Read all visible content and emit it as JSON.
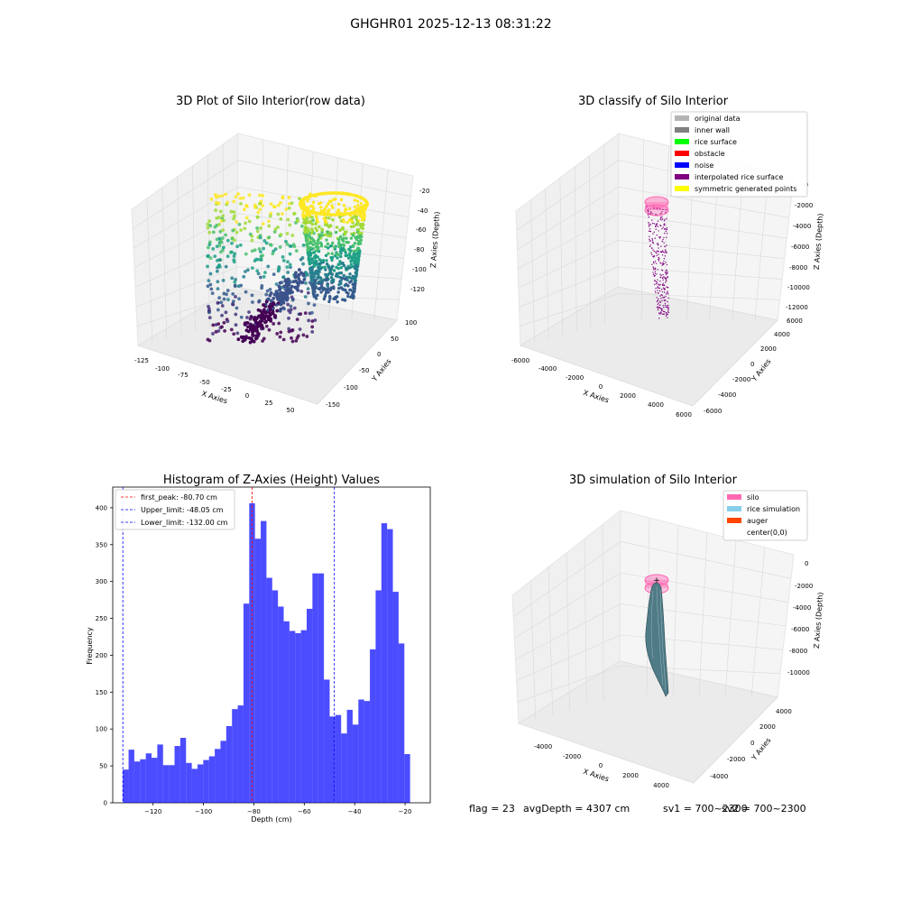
{
  "figure": {
    "suptitle": "GHGHR01 2025-12-13 08:31:22",
    "footer": {
      "flag": "flag = 23",
      "avg": "avgDepth = 4307 cm",
      "sv1": "sv1 = 700~2300",
      "sv2": "sv2 = 700~2300"
    }
  },
  "panels": {
    "raw": {
      "title": "3D Plot of Silo Interior(row data)",
      "xlabel": "X Axies",
      "ylabel": "Y Axies",
      "zlabel": "Z Axies (Depth)",
      "xticks": [
        "-125",
        "-100",
        "-75",
        "-50",
        "-25",
        "0",
        "25",
        "50"
      ],
      "yticks": [
        "100",
        "50",
        "0",
        "-50",
        "-100",
        "-150"
      ],
      "zticks": [
        "-20",
        "-40",
        "-60",
        "-80",
        "-100",
        "-120"
      ]
    },
    "classify": {
      "title": "3D classify of Silo Interior",
      "xlabel": "X Axies",
      "ylabel": "Y Axies",
      "zlabel": "Z Axies (Depth)",
      "xticks": [
        "-6000",
        "-4000",
        "-2000",
        "0",
        "2000",
        "4000",
        "6000"
      ],
      "yticks": [
        "6000",
        "4000",
        "2000",
        "0",
        "-2000",
        "-4000",
        "-6000"
      ],
      "zticks": [
        "0",
        "-2000",
        "-4000",
        "-6000",
        "-8000",
        "-10000",
        "-12000"
      ],
      "legend": [
        {
          "label": "original data",
          "color": "#b4b4b4"
        },
        {
          "label": "inner wall",
          "color": "#808080"
        },
        {
          "label": "rice surface",
          "color": "#00ff00"
        },
        {
          "label": "obstacle",
          "color": "#ff0000"
        },
        {
          "label": "noise",
          "color": "#0000ff"
        },
        {
          "label": "interpolated rice surface",
          "color": "#800080"
        },
        {
          "label": "symmetric generated points",
          "color": "#ffff00"
        }
      ]
    },
    "simulation": {
      "title": "3D simulation of Silo Interior",
      "xlabel": "X Axies",
      "ylabel": "Y Axies",
      "zlabel": "Z Axies (Depth)",
      "xticks": [
        "-4000",
        "-2000",
        "0",
        "2000",
        "4000"
      ],
      "yticks": [
        "4000",
        "2000",
        "0",
        "-2000",
        "-4000"
      ],
      "zticks": [
        "0",
        "-2000",
        "-4000",
        "-6000",
        "-8000",
        "-10000"
      ],
      "center_marker": "+",
      "legend": [
        {
          "label": "silo",
          "color": "#ff69b4"
        },
        {
          "label": "rice simulation",
          "color": "#87ceeb"
        },
        {
          "label": "auger",
          "color": "#ff4500"
        },
        {
          "label": "center(0,0)",
          "color": ""
        }
      ]
    }
  },
  "chart_data": {
    "type": "bar",
    "title": "Histogram of Z-Axies (Height) Values",
    "xlabel": "Depth (cm)",
    "ylabel": "Frequency",
    "xlim": [
      -136,
      -10
    ],
    "ylim": [
      0,
      428
    ],
    "xticks": [
      -120,
      -100,
      -80,
      -60,
      -40,
      -20
    ],
    "yticks": [
      0,
      50,
      100,
      150,
      200,
      250,
      300,
      350,
      400
    ],
    "bin_width": 2.28,
    "bin_start": -132.0,
    "values": [
      45,
      72,
      56,
      59,
      67,
      61,
      79,
      51,
      51,
      77,
      88,
      54,
      46,
      52,
      58,
      63,
      73,
      84,
      104,
      127,
      132,
      270,
      406,
      358,
      382,
      305,
      288,
      266,
      246,
      233,
      230,
      234,
      263,
      311,
      311,
      167,
      117,
      119,
      94,
      126,
      106,
      140,
      138,
      208,
      288,
      379,
      371,
      286,
      216,
      66
    ],
    "bar_color": "#0000ff",
    "bar_opacity": 0.7,
    "lines": [
      {
        "label": "first_peak: -80.70 cm",
        "x": -80.7,
        "color": "#ff0000"
      },
      {
        "label": "Upper_limit: -48.05 cm",
        "x": -48.05,
        "color": "#0000ff"
      },
      {
        "label": "Lower_limit: -132.00 cm",
        "x": -132.0,
        "color": "#0000ff"
      }
    ],
    "legend_position": "top-left",
    "grid": false
  }
}
